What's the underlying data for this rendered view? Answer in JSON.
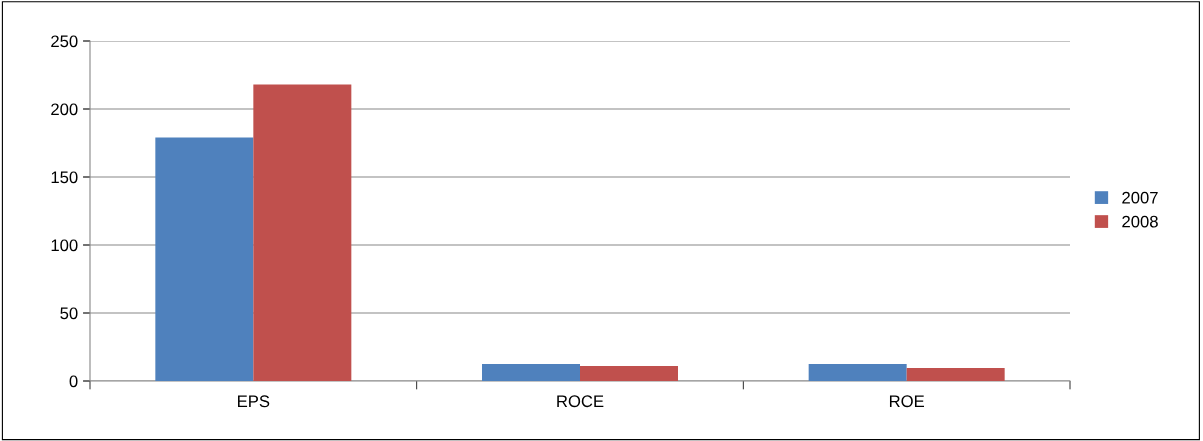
{
  "chart_data": {
    "type": "bar",
    "categories": [
      "EPS",
      "ROCE",
      "ROE"
    ],
    "series": [
      {
        "name": "2007",
        "color": "#4f81bd",
        "values": [
          179,
          12.5,
          12.5
        ]
      },
      {
        "name": "2008",
        "color": "#c0504d",
        "values": [
          218,
          11,
          9.5
        ]
      }
    ],
    "ylim": [
      0,
      250
    ],
    "yticks": [
      0,
      50,
      100,
      150,
      200,
      250
    ],
    "grid": "y",
    "legend": "right"
  }
}
